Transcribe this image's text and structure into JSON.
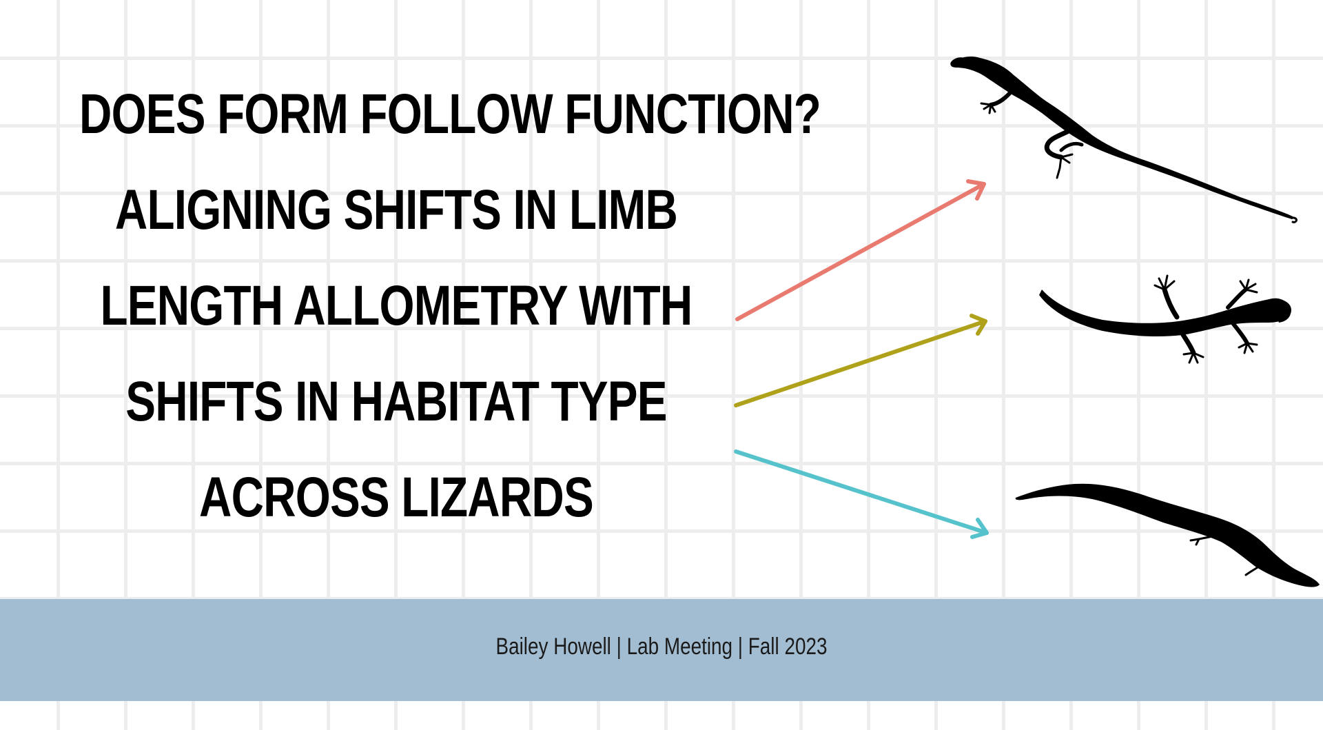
{
  "slide": {
    "title_lines": [
      "DOES FORM FOLLOW FUNCTION?",
      "ALIGNING SHIFTS IN LIMB",
      "LENGTH ALLOMETRY WITH",
      "SHIFTS IN HABITAT TYPE",
      "ACROSS LIZARDS"
    ],
    "footer_text": "Bailey Howell | Lab Meeting | Fall 2023"
  },
  "colors": {
    "background": "#ffffff",
    "grid_lines": "#ededed",
    "footer_band": "#a2bdd1",
    "arrow_1": "#e87a70",
    "arrow_2": "#b0a11a",
    "arrow_3": "#56c2cb",
    "silhouettes": "#000000"
  },
  "icons": [
    "arrow-to-anole-icon",
    "arrow-to-gecko-icon",
    "arrow-to-legless-lizard-icon",
    "anole-lizard-silhouette-icon",
    "gecko-silhouette-icon",
    "legless-lizard-silhouette-icon"
  ]
}
